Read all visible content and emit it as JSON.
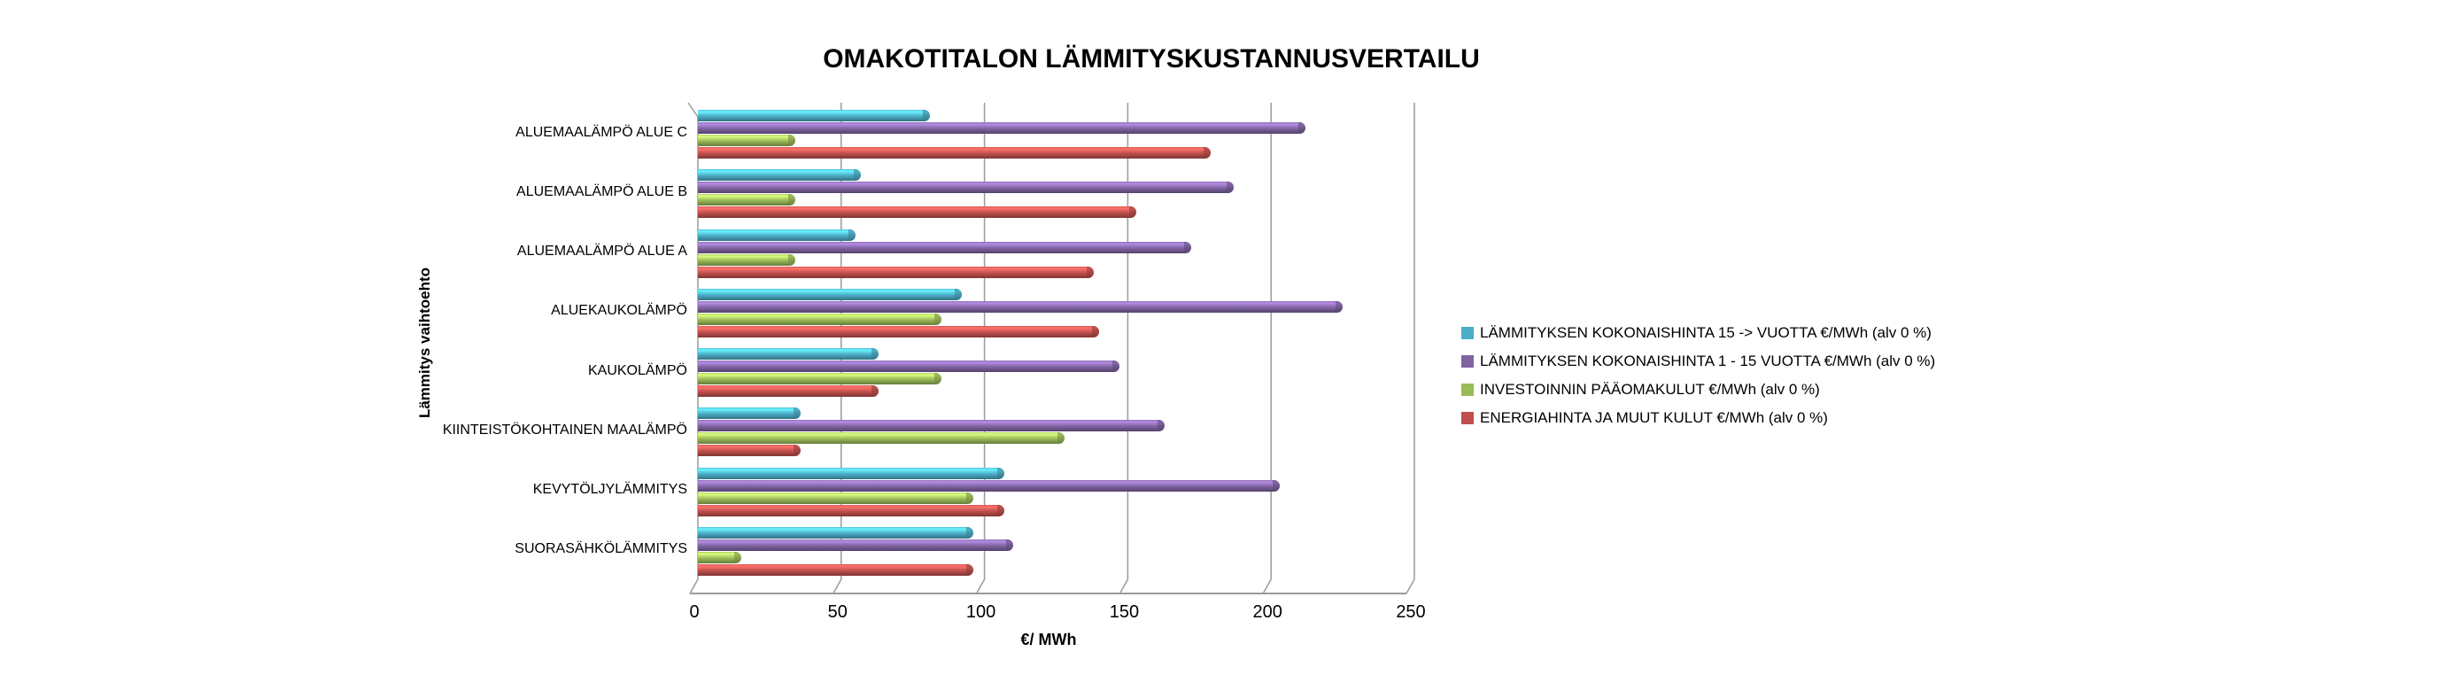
{
  "chart_data": {
    "type": "bar",
    "orientation": "horizontal",
    "title": "OMAKOTITALON LÄMMITYSKUSTANNUSVERTAILU",
    "xlabel": "€/ MWh",
    "ylabel": "Lämmitys vaihtoehto",
    "xlim": [
      0,
      250
    ],
    "xticks": [
      0,
      50,
      100,
      150,
      200,
      250
    ],
    "grid": true,
    "legend_position": "right",
    "categories": [
      "ALUEMAALÄMPÖ ALUE C",
      "ALUEMAALÄMPÖ ALUE B",
      "ALUEMAALÄMPÖ ALUE A",
      "ALUEKAUKOLÄMPÖ",
      "KAUKOLÄMPÖ",
      "KIINTEISTÖKOHTAINEN MAALÄMPÖ",
      "KEVYTÖLJYLÄMMITYS",
      "SUORASÄHKÖLÄMMITYS"
    ],
    "series": [
      {
        "name": "LÄMMITYKSEN KOKONAISHINTA 15 -> VUOTTA €/MWh (alv 0 %)",
        "color": "#4BACC6",
        "values": [
          81,
          57,
          55,
          92,
          63,
          36,
          107,
          96
        ]
      },
      {
        "name": "LÄMMITYKSEN KOKONAISHINTA 1 - 15 VUOTTA €/MWh (alv 0 %)",
        "color": "#8064A2",
        "values": [
          212,
          187,
          172,
          225,
          147,
          163,
          203,
          110
        ]
      },
      {
        "name": "INVESTOINNIN PÄÄOMAKULUT €/MWh (alv 0 %)",
        "color": "#9BBB59",
        "values": [
          34,
          34,
          34,
          85,
          85,
          128,
          96,
          15
        ]
      },
      {
        "name": "ENERGIAHINTA JA MUUT KULUT €/MWh (alv 0 %)",
        "color": "#C0504D",
        "values": [
          179,
          153,
          138,
          140,
          63,
          36,
          107,
          96
        ]
      }
    ],
    "axis_color": "#9a9a9a"
  }
}
